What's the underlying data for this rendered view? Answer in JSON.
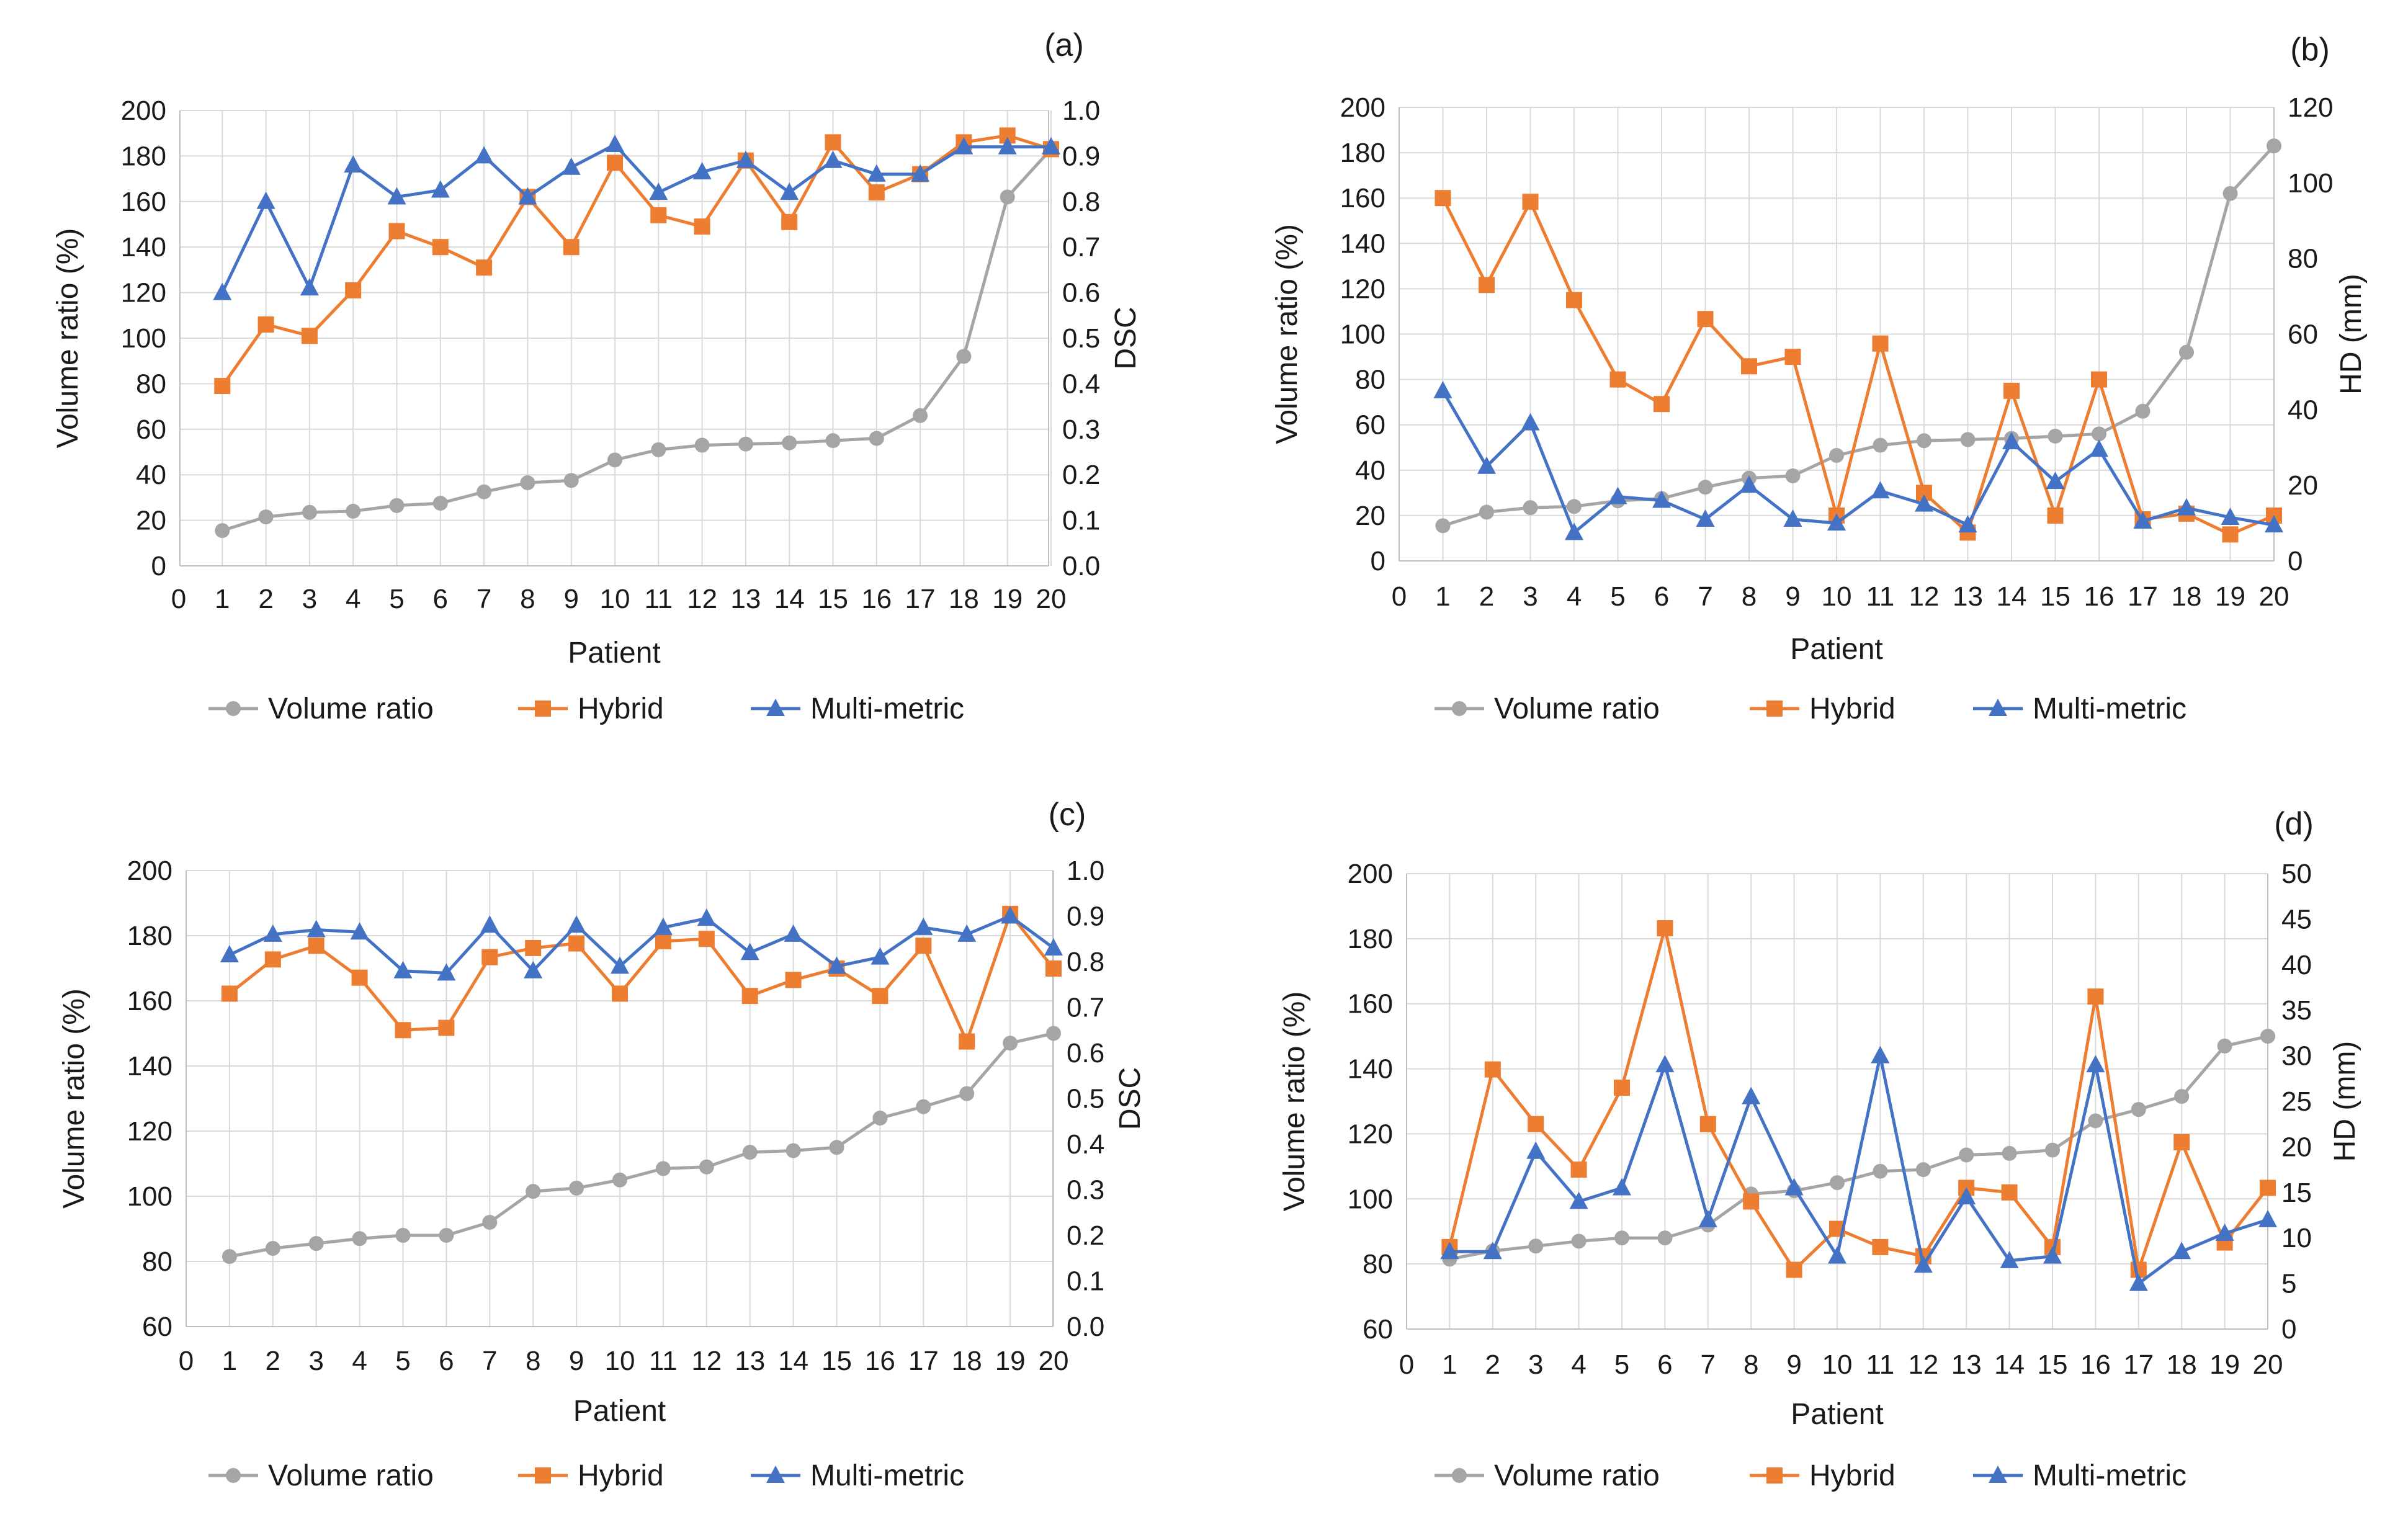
{
  "figure": {
    "colors": {
      "volume": "#a5a5a5",
      "hybrid": "#ed7d31",
      "multi": "#4472c4",
      "grid": "#d9d9d9",
      "axis": "#bfbfbf"
    },
    "legend": [
      "Volume ratio",
      "Hybrid",
      "Multi-metric"
    ]
  },
  "chart_data": [
    {
      "type": "line",
      "panel_label": "(a)",
      "xlabel": "Patient",
      "ylabel": "Volume ratio (%)",
      "y2label": "DSC",
      "x_ticks": [
        "0",
        "1",
        "2",
        "3",
        "4",
        "5",
        "6",
        "7",
        "8",
        "9",
        "10",
        "11",
        "12",
        "13",
        "14",
        "15",
        "16",
        "17",
        "18",
        "19",
        "20"
      ],
      "ylim": [
        0,
        200
      ],
      "yticks": [
        "0",
        "20",
        "40",
        "60",
        "80",
        "100",
        "120",
        "140",
        "160",
        "180",
        "200"
      ],
      "y2lim": [
        0,
        1
      ],
      "y2ticks": [
        "0.0",
        "0.1",
        "0.2",
        "0.3",
        "0.4",
        "0.5",
        "0.6",
        "0.7",
        "0.8",
        "0.9",
        "1.0"
      ],
      "x": [
        1,
        2,
        3,
        4,
        5,
        6,
        7,
        8,
        9,
        10,
        11,
        12,
        13,
        14,
        15,
        16,
        17,
        18,
        19,
        20
      ],
      "series": [
        {
          "name": "Volume ratio",
          "axis": "left",
          "marker": "circle",
          "values": [
            15.5,
            21.5,
            23.5,
            24,
            26.5,
            27.5,
            32.5,
            36.5,
            37.5,
            46.5,
            51,
            53,
            53.5,
            54,
            55,
            56,
            66,
            92,
            162,
            183
          ]
        },
        {
          "name": "Hybrid",
          "axis": "right",
          "marker": "square",
          "values": [
            0.395,
            0.53,
            0.505,
            0.605,
            0.735,
            0.7,
            0.655,
            0.81,
            0.7,
            0.885,
            0.77,
            0.745,
            0.89,
            0.755,
            0.93,
            0.82,
            0.86,
            0.93,
            0.945,
            0.915
          ]
        },
        {
          "name": "Multi-metric",
          "axis": "right",
          "marker": "triangle",
          "values": [
            0.6,
            0.8,
            0.61,
            0.88,
            0.81,
            0.825,
            0.9,
            0.81,
            0.875,
            0.925,
            0.82,
            0.865,
            0.89,
            0.82,
            0.89,
            0.86,
            0.86,
            0.92,
            0.92,
            0.92
          ]
        }
      ],
      "legend_position": "bottom",
      "grid": true
    },
    {
      "type": "line",
      "panel_label": "(b)",
      "xlabel": "Patient",
      "ylabel": "Volume ratio (%)",
      "y2label": "HD (mm)",
      "x_ticks": [
        "0",
        "1",
        "2",
        "3",
        "4",
        "5",
        "6",
        "7",
        "8",
        "9",
        "10",
        "11",
        "12",
        "13",
        "14",
        "15",
        "16",
        "17",
        "18",
        "19",
        "20"
      ],
      "ylim": [
        0,
        200
      ],
      "yticks": [
        "0",
        "20",
        "40",
        "60",
        "80",
        "100",
        "120",
        "140",
        "160",
        "180",
        "200"
      ],
      "y2lim": [
        0,
        120
      ],
      "y2ticks": [
        "0",
        "20",
        "40",
        "60",
        "80",
        "100",
        "120"
      ],
      "x": [
        1,
        2,
        3,
        4,
        5,
        6,
        7,
        8,
        9,
        10,
        11,
        12,
        13,
        14,
        15,
        16,
        17,
        18,
        19,
        20
      ],
      "series": [
        {
          "name": "Volume ratio",
          "axis": "left",
          "marker": "circle",
          "values": [
            15.5,
            21.5,
            23.5,
            24,
            26.5,
            27.5,
            32.5,
            36.5,
            37.5,
            46.5,
            51,
            53,
            53.5,
            54,
            55,
            56,
            66,
            92,
            162,
            183
          ]
        },
        {
          "name": "Hybrid",
          "axis": "right",
          "marker": "square",
          "values": [
            96,
            73,
            95,
            69,
            48,
            41.5,
            64,
            51.5,
            54,
            12,
            57.5,
            18,
            7.5,
            45,
            12,
            48,
            11,
            12.5,
            7,
            12
          ]
        },
        {
          "name": "Multi-metric",
          "axis": "right",
          "marker": "triangle",
          "values": [
            45,
            25,
            36.5,
            7.5,
            17,
            16,
            11,
            20,
            11,
            10,
            18.5,
            15,
            9.5,
            31.5,
            21,
            29.5,
            10.5,
            14,
            11.5,
            9.5
          ]
        }
      ],
      "legend_position": "bottom",
      "grid": true
    },
    {
      "type": "line",
      "panel_label": "(c)",
      "xlabel": "Patient",
      "ylabel": "Volume ratio (%)",
      "y2label": "DSC",
      "x_ticks": [
        "0",
        "1",
        "2",
        "3",
        "4",
        "5",
        "6",
        "7",
        "8",
        "9",
        "10",
        "11",
        "12",
        "13",
        "14",
        "15",
        "16",
        "17",
        "18",
        "19",
        "20"
      ],
      "ylim": [
        60,
        200
      ],
      "yticks": [
        "60",
        "80",
        "100",
        "120",
        "140",
        "160",
        "180",
        "200"
      ],
      "y2lim": [
        0,
        1
      ],
      "y2ticks": [
        "0.0",
        "0.1",
        "0.2",
        "0.3",
        "0.4",
        "0.5",
        "0.6",
        "0.7",
        "0.8",
        "0.9",
        "1.0"
      ],
      "x": [
        1,
        2,
        3,
        4,
        5,
        6,
        7,
        8,
        9,
        10,
        11,
        12,
        13,
        14,
        15,
        16,
        17,
        18,
        19,
        20
      ],
      "series": [
        {
          "name": "Volume ratio",
          "axis": "left",
          "marker": "circle",
          "values": [
            81.5,
            84,
            85.5,
            87,
            88,
            88,
            92,
            101.5,
            102.5,
            105,
            108.5,
            109,
            113.5,
            114,
            115,
            124,
            127.5,
            131.5,
            147,
            150
          ]
        },
        {
          "name": "Hybrid",
          "axis": "right",
          "marker": "square",
          "values": [
            0.73,
            0.805,
            0.835,
            0.765,
            0.65,
            0.655,
            0.81,
            0.83,
            0.84,
            0.73,
            0.845,
            0.85,
            0.725,
            0.76,
            0.785,
            0.725,
            0.835,
            0.625,
            0.905,
            0.785
          ]
        },
        {
          "name": "Multi-metric",
          "axis": "right",
          "marker": "triangle",
          "values": [
            0.815,
            0.86,
            0.87,
            0.865,
            0.78,
            0.775,
            0.88,
            0.78,
            0.88,
            0.79,
            0.875,
            0.895,
            0.82,
            0.86,
            0.79,
            0.81,
            0.875,
            0.86,
            0.9,
            0.83
          ]
        }
      ],
      "legend_position": "bottom",
      "grid": true
    },
    {
      "type": "line",
      "panel_label": "(d)",
      "xlabel": "Patient",
      "ylabel": "Volume ratio (%)",
      "y2label": "HD (mm)",
      "x_ticks": [
        "0",
        "1",
        "2",
        "3",
        "4",
        "5",
        "6",
        "7",
        "8",
        "9",
        "10",
        "11",
        "12",
        "13",
        "14",
        "15",
        "16",
        "17",
        "18",
        "19",
        "20"
      ],
      "ylim": [
        60,
        200
      ],
      "yticks": [
        "60",
        "80",
        "100",
        "120",
        "140",
        "160",
        "180",
        "200"
      ],
      "y2lim": [
        0,
        50
      ],
      "y2ticks": [
        "0",
        "5",
        "10",
        "15",
        "20",
        "25",
        "30",
        "35",
        "40",
        "45",
        "50"
      ],
      "x": [
        1,
        2,
        3,
        4,
        5,
        6,
        7,
        8,
        9,
        10,
        11,
        12,
        13,
        14,
        15,
        16,
        17,
        18,
        19,
        20
      ],
      "series": [
        {
          "name": "Volume ratio",
          "axis": "left",
          "marker": "circle",
          "values": [
            81.5,
            84,
            85.5,
            87,
            88,
            88,
            92,
            101.5,
            102.5,
            105,
            108.5,
            109,
            113.5,
            114,
            115,
            124,
            127.5,
            131.5,
            147,
            150
          ]
        },
        {
          "name": "Hybrid",
          "axis": "right",
          "marker": "square",
          "values": [
            9,
            28.5,
            22.5,
            17.5,
            26.5,
            44,
            22.5,
            14,
            6.5,
            11,
            9,
            8,
            15.5,
            15,
            9,
            36.5,
            6.5,
            20.5,
            9.5,
            15.5
          ]
        },
        {
          "name": "Multi-metric",
          "axis": "right",
          "marker": "triangle",
          "values": [
            8.5,
            8.5,
            19.5,
            14,
            15.5,
            29,
            12,
            25.5,
            15.5,
            8,
            30,
            7,
            14.5,
            7.5,
            8,
            29,
            5,
            8.5,
            10.5,
            12
          ]
        }
      ],
      "legend_position": "bottom",
      "grid": true
    }
  ]
}
